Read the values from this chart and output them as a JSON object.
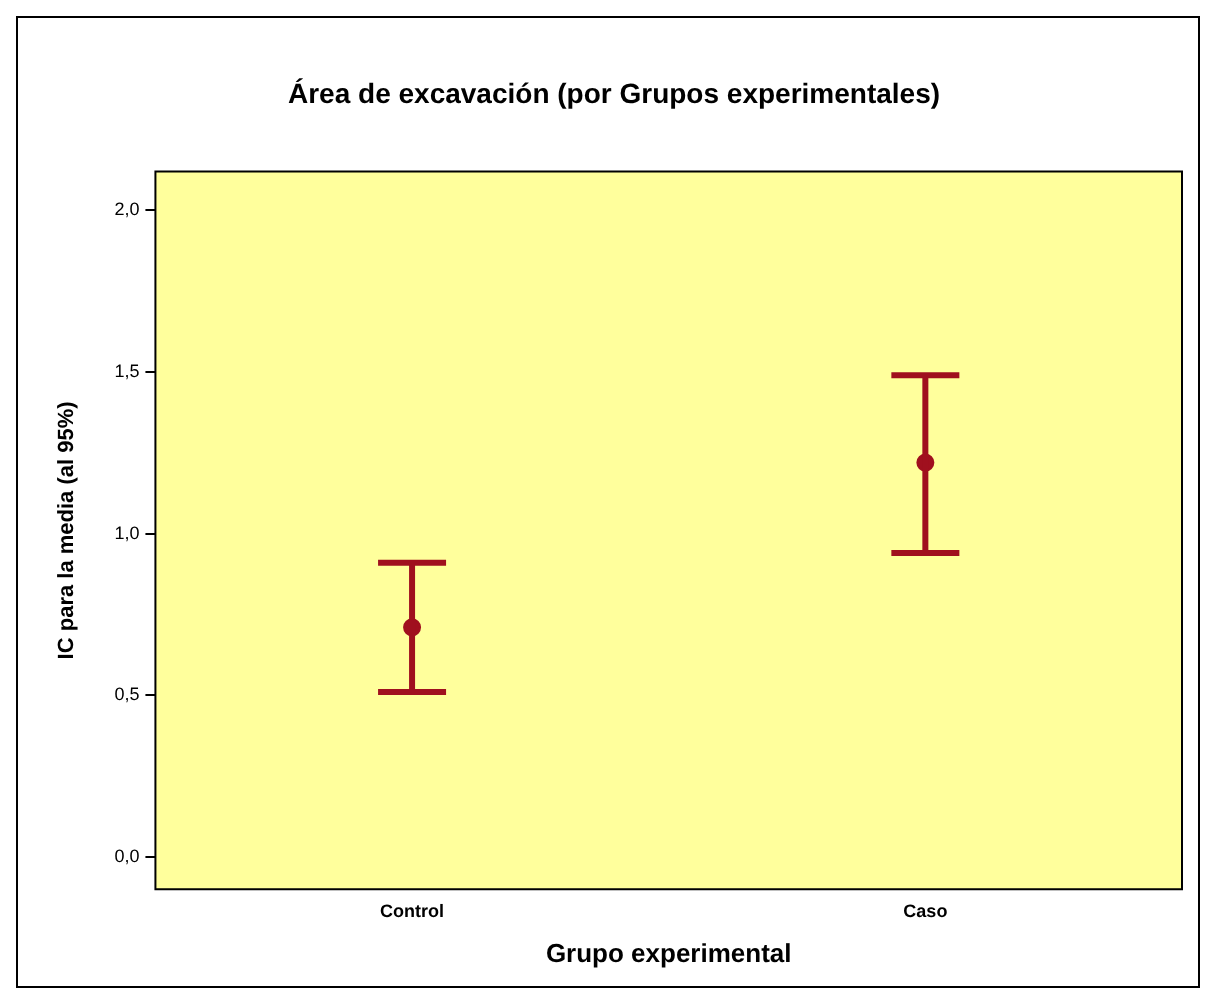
{
  "chart_data": {
    "type": "scatter",
    "title": "Área de excavación (por Grupos experimentales)",
    "xlabel": "Grupo experimental",
    "ylabel": "IC para la media (al 95%)",
    "categories": [
      "Control",
      "Caso"
    ],
    "series": [
      {
        "color": "#a0101e",
        "values": [
          0.71,
          1.22
        ],
        "errors": [
          [
            0.51,
            0.91
          ],
          [
            0.94,
            1.49
          ]
        ]
      }
    ],
    "ylim": [
      -0.1,
      2.12
    ],
    "yticks": [
      {
        "value": 0,
        "label": "0,0"
      },
      {
        "value": 0.5,
        "label": "0,5"
      },
      {
        "value": 1,
        "label": "1,0"
      },
      {
        "value": 1.5,
        "label": "1,5"
      },
      {
        "value": 2,
        "label": "2,0"
      }
    ],
    "legend": false,
    "marker": "circle"
  }
}
